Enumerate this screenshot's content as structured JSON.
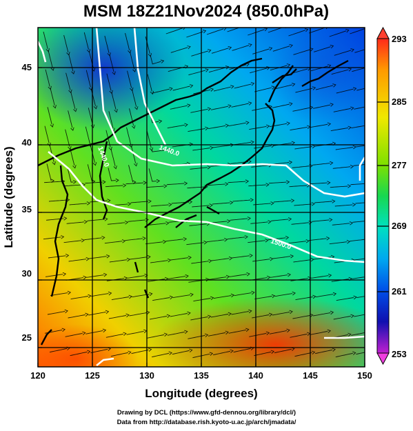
{
  "title": "MSM 18Z21Nov2024 (850.0hPa)",
  "map": {
    "x_axis_label": "Longitude (degrees)",
    "y_axis_label": "Latitude  (degrees)",
    "lon_range": [
      120,
      150
    ],
    "lat_range": [
      22.5,
      47.5
    ],
    "lon_ticks": [
      "120",
      "125",
      "130",
      "135",
      "140",
      "145",
      "150"
    ],
    "lat_ticks": [
      "25",
      "30",
      "35",
      "40",
      "45"
    ],
    "grid": true,
    "contour_labels": [
      "1440.0",
      "1440.0",
      "1500.0"
    ],
    "variable_field": "temperature (K)",
    "overlay": "streamlines and white geopotential-height contours",
    "coastline_color": "#000000",
    "contour_color": "#ffffff"
  },
  "colorbar": {
    "labels": [
      "293",
      "285",
      "277",
      "269",
      "261",
      "253"
    ],
    "min": 253,
    "max": 293,
    "colors": [
      "#ff2a1a",
      "#ff9a00",
      "#f0e800",
      "#7fe000",
      "#18d850",
      "#00e0c0",
      "#00a8f0",
      "#0050e8",
      "#1010b0",
      "#7010c0",
      "#e020d0"
    ]
  },
  "credits": {
    "line1": "Drawing by DCL (https://www.gfd-dennou.org/library/dcl/)",
    "line2": "Data from http://database.rish.kyoto-u.ac.jp/arch/jmadata/"
  }
}
